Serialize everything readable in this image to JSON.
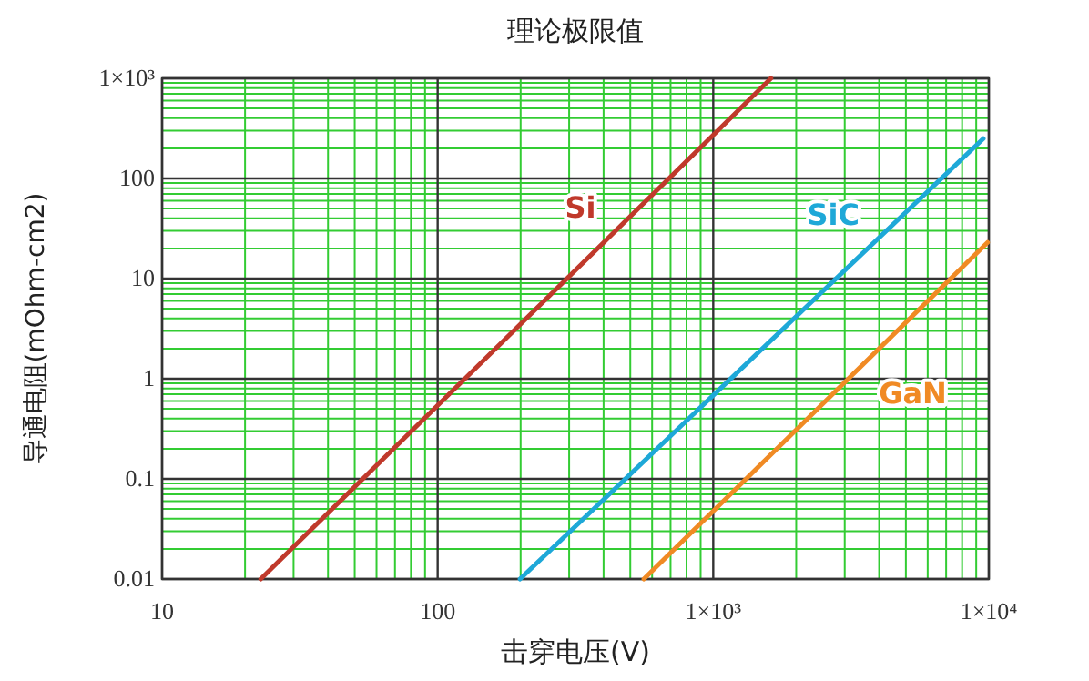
{
  "chart_data": {
    "type": "line",
    "title": "理论极限值",
    "xlabel": "击穿电压(V)",
    "ylabel": "导通电阻(mOhm-cm2)",
    "log": "xy",
    "grid": true,
    "marker": "none",
    "line_style": "solid",
    "xlim": [
      10,
      10000
    ],
    "xticks": [
      10,
      {
        "value": 20,
        "label": null
      },
      {
        "value": 30,
        "label": null
      },
      {
        "value": 40,
        "label": null
      },
      {
        "value": 50,
        "label": null
      },
      {
        "value": 60,
        "label": null
      },
      {
        "value": 70,
        "label": null
      },
      {
        "value": 80,
        "label": null
      },
      {
        "value": 90,
        "label": null
      },
      100,
      {
        "value": 200,
        "label": null
      },
      {
        "value": 300,
        "label": null
      },
      {
        "value": 400,
        "label": null
      },
      {
        "value": 500,
        "label": null
      },
      {
        "value": 600,
        "label": null
      },
      {
        "value": 700,
        "label": null
      },
      {
        "value": 800,
        "label": null
      },
      {
        "value": 900,
        "label": null
      },
      {
        "value": 1000,
        "label": "1×10³"
      },
      {
        "value": 2000,
        "label": null
      },
      {
        "value": 3000,
        "label": null
      },
      {
        "value": 4000,
        "label": null
      },
      {
        "value": 5000,
        "label": null
      },
      {
        "value": 6000,
        "label": null
      },
      {
        "value": 7000,
        "label": null
      },
      {
        "value": 8000,
        "label": null
      },
      {
        "value": 9000,
        "label": null
      },
      {
        "value": 10000,
        "label": "1×10⁴"
      }
    ],
    "ylim": [
      0.01,
      1000
    ],
    "yticks": [
      0.01,
      {
        "value": 0.02,
        "label": null
      },
      {
        "value": 0.03,
        "label": null
      },
      {
        "value": 0.04,
        "label": null
      },
      {
        "value": 0.05,
        "label": null
      },
      {
        "value": 0.06,
        "label": null
      },
      {
        "value": 0.07,
        "label": null
      },
      {
        "value": 0.08,
        "label": null
      },
      {
        "value": 0.09,
        "label": null
      },
      0.1,
      {
        "value": 0.2,
        "label": null
      },
      {
        "value": 0.3,
        "label": null
      },
      {
        "value": 0.4,
        "label": null
      },
      {
        "value": 0.5,
        "label": null
      },
      {
        "value": 0.6,
        "label": null
      },
      {
        "value": 0.7,
        "label": null
      },
      {
        "value": 0.8,
        "label": null
      },
      {
        "value": 0.9,
        "label": null
      },
      1,
      {
        "value": 2,
        "label": null
      },
      {
        "value": 3,
        "label": null
      },
      {
        "value": 4,
        "label": null
      },
      {
        "value": 5,
        "label": null
      },
      {
        "value": 6,
        "label": null
      },
      {
        "value": 7,
        "label": null
      },
      {
        "value": 8,
        "label": null
      },
      {
        "value": 9,
        "label": null
      },
      10,
      {
        "value": 20,
        "label": null
      },
      {
        "value": 30,
        "label": null
      },
      {
        "value": 40,
        "label": null
      },
      {
        "value": 50,
        "label": null
      },
      {
        "value": 60,
        "label": null
      },
      {
        "value": 70,
        "label": null
      },
      {
        "value": 80,
        "label": null
      },
      {
        "value": 90,
        "label": null
      },
      100,
      {
        "value": 200,
        "label": null
      },
      {
        "value": 300,
        "label": null
      },
      {
        "value": 400,
        "label": null
      },
      {
        "value": 500,
        "label": null
      },
      {
        "value": 600,
        "label": null
      },
      {
        "value": 700,
        "label": null
      },
      {
        "value": 800,
        "label": null
      },
      {
        "value": 900,
        "label": null
      },
      {
        "value": 1000,
        "label": "1×10³"
      }
    ],
    "series": [
      {
        "name": "Si",
        "color": "#c0392b",
        "x": [
          22.8,
          1620
        ],
        "values": [
          0.01,
          1000
        ]
      },
      {
        "name": "SiC",
        "color": "#1ea8d8",
        "x": [
          199,
          9550
        ],
        "values": [
          0.01,
          250
        ]
      },
      {
        "name": "GaN",
        "color": "#f08a24",
        "x": [
          560,
          9900
        ],
        "values": [
          0.01,
          23
        ]
      }
    ]
  }
}
